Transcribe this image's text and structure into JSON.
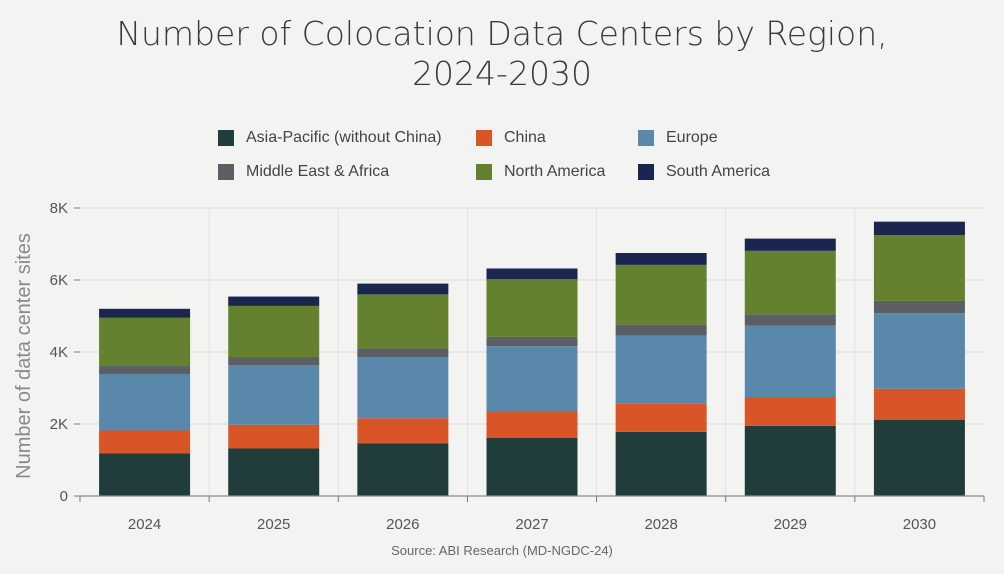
{
  "title_line1": "Number of Colocation Data Centers by Region,",
  "title_line2": "2024-2030",
  "source": "Source: ABI Research (MD-NGDC-24)",
  "chart_data": {
    "type": "bar",
    "stacked": true,
    "title": "Number of Colocation Data Centers by Region, 2024-2030",
    "xlabel": "",
    "ylabel": "Number of data center sites",
    "categories": [
      "2024",
      "2025",
      "2026",
      "2027",
      "2028",
      "2029",
      "2030"
    ],
    "ylim": [
      0,
      8000
    ],
    "yticks": [
      0,
      2000,
      4000,
      6000,
      8000
    ],
    "ytick_labels": [
      "0",
      "2K",
      "4K",
      "6K",
      "8K"
    ],
    "grid": true,
    "legend_position": "top",
    "series": [
      {
        "name": "Asia-Pacific (without China)",
        "color": "#213d3b",
        "values": [
          1180,
          1320,
          1460,
          1620,
          1780,
          1950,
          2120
        ]
      },
      {
        "name": "China",
        "color": "#d95427",
        "values": [
          640,
          660,
          700,
          740,
          780,
          800,
          860
        ]
      },
      {
        "name": "Europe",
        "color": "#5a88aa",
        "values": [
          1570,
          1650,
          1700,
          1800,
          1900,
          1980,
          2100
        ]
      },
      {
        "name": "Middle East & Africa",
        "color": "#5b5f64",
        "values": [
          220,
          230,
          240,
          260,
          300,
          320,
          340
        ]
      },
      {
        "name": "North America",
        "color": "#63812f",
        "values": [
          1340,
          1420,
          1500,
          1600,
          1660,
          1760,
          1830
        ]
      },
      {
        "name": "South America",
        "color": "#1a2650",
        "values": [
          250,
          260,
          300,
          300,
          330,
          340,
          370
        ]
      }
    ]
  }
}
